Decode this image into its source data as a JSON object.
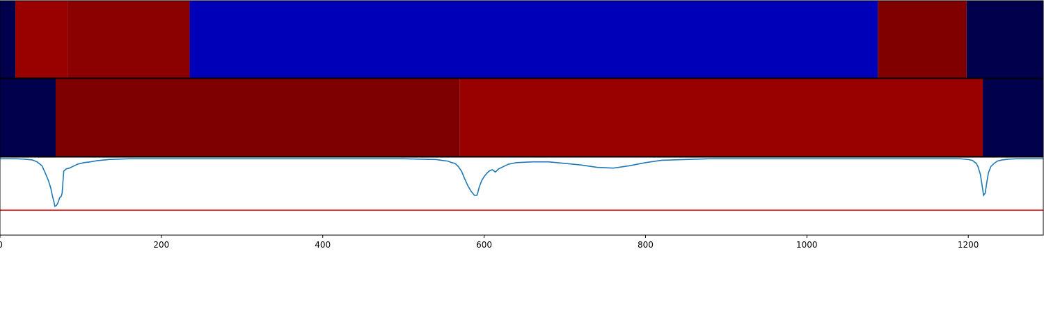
{
  "chart_data": [
    {
      "type": "heatmap",
      "xlim": [
        0,
        1293
      ],
      "segments": [
        {
          "start": 0,
          "end": 19,
          "color": "#00004c"
        },
        {
          "start": 19,
          "end": 84,
          "color": "#990000"
        },
        {
          "start": 84,
          "end": 235,
          "color": "#8b0000"
        },
        {
          "start": 235,
          "end": 1088,
          "color": "#0000b8"
        },
        {
          "start": 1088,
          "end": 1198,
          "color": "#800000"
        },
        {
          "start": 1198,
          "end": 1293,
          "color": "#00004c"
        }
      ]
    },
    {
      "type": "heatmap",
      "xlim": [
        0,
        1293
      ],
      "segments": [
        {
          "start": 0,
          "end": 69,
          "color": "#00004c"
        },
        {
          "start": 69,
          "end": 570,
          "color": "#7f0000"
        },
        {
          "start": 570,
          "end": 1218,
          "color": "#990000"
        },
        {
          "start": 1218,
          "end": 1293,
          "color": "#00004c"
        }
      ]
    },
    {
      "type": "line",
      "xlim": [
        0,
        1293
      ],
      "ylim": [
        -0.98,
        0.02
      ],
      "xticks": [
        0,
        200,
        400,
        600,
        800,
        1000,
        1200
      ],
      "threshold": {
        "value": -0.66,
        "color": "#ee1111"
      },
      "series": [
        {
          "color": "#1f77b4",
          "points": [
            [
              0,
              0
            ],
            [
              20,
              0
            ],
            [
              30,
              -0.005
            ],
            [
              40,
              -0.015
            ],
            [
              46,
              -0.04
            ],
            [
              52,
              -0.09
            ],
            [
              56,
              -0.18
            ],
            [
              60,
              -0.28
            ],
            [
              63,
              -0.38
            ],
            [
              65,
              -0.48
            ],
            [
              67,
              -0.56
            ],
            [
              68,
              -0.61
            ],
            [
              70,
              -0.6
            ],
            [
              72,
              -0.56
            ],
            [
              74,
              -0.5
            ],
            [
              76,
              -0.48
            ],
            [
              77,
              -0.44
            ],
            [
              78,
              -0.3
            ],
            [
              79,
              -0.16
            ],
            [
              82,
              -0.13
            ],
            [
              86,
              -0.12
            ],
            [
              90,
              -0.1
            ],
            [
              96,
              -0.07
            ],
            [
              104,
              -0.05
            ],
            [
              112,
              -0.04
            ],
            [
              120,
              -0.025
            ],
            [
              135,
              -0.01
            ],
            [
              160,
              0
            ],
            [
              500,
              0
            ],
            [
              520,
              -0.005
            ],
            [
              540,
              -0.01
            ],
            [
              555,
              -0.03
            ],
            [
              560,
              -0.05
            ],
            [
              564,
              -0.06
            ],
            [
              568,
              -0.1
            ],
            [
              572,
              -0.16
            ],
            [
              576,
              -0.26
            ],
            [
              580,
              -0.35
            ],
            [
              584,
              -0.42
            ],
            [
              588,
              -0.47
            ],
            [
              591,
              -0.47
            ],
            [
              592,
              -0.44
            ],
            [
              594,
              -0.36
            ],
            [
              597,
              -0.28
            ],
            [
              600,
              -0.23
            ],
            [
              603,
              -0.19
            ],
            [
              606,
              -0.16
            ],
            [
              610,
              -0.14
            ],
            [
              614,
              -0.17
            ],
            [
              618,
              -0.13
            ],
            [
              624,
              -0.1
            ],
            [
              630,
              -0.07
            ],
            [
              640,
              -0.05
            ],
            [
              660,
              -0.04
            ],
            [
              680,
              -0.04
            ],
            [
              700,
              -0.06
            ],
            [
              720,
              -0.08
            ],
            [
              740,
              -0.11
            ],
            [
              760,
              -0.12
            ],
            [
              780,
              -0.09
            ],
            [
              800,
              -0.05
            ],
            [
              820,
              -0.02
            ],
            [
              850,
              -0.01
            ],
            [
              880,
              0
            ],
            [
              1190,
              0
            ],
            [
              1200,
              -0.01
            ],
            [
              1205,
              -0.02
            ],
            [
              1210,
              -0.06
            ],
            [
              1212,
              -0.1
            ],
            [
              1215,
              -0.2
            ],
            [
              1218,
              -0.4
            ],
            [
              1219,
              -0.47
            ],
            [
              1221,
              -0.44
            ],
            [
              1223,
              -0.3
            ],
            [
              1225,
              -0.18
            ],
            [
              1228,
              -0.1
            ],
            [
              1232,
              -0.06
            ],
            [
              1236,
              -0.03
            ],
            [
              1242,
              -0.015
            ],
            [
              1250,
              -0.005
            ],
            [
              1260,
              0
            ],
            [
              1293,
              0
            ]
          ]
        }
      ]
    }
  ]
}
